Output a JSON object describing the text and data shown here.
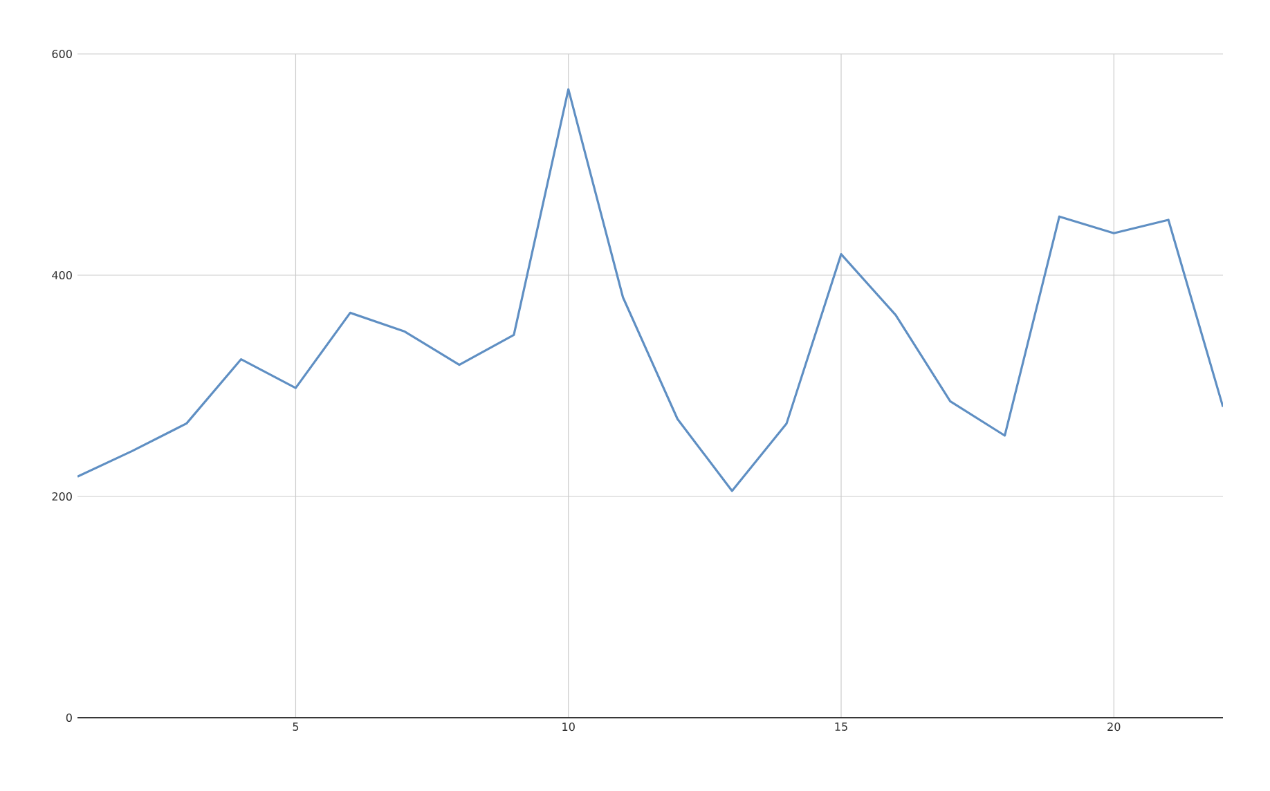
{
  "chart_data": {
    "type": "line",
    "x": [
      1,
      2,
      3,
      4,
      5,
      6,
      7,
      8,
      9,
      10,
      11,
      12,
      13,
      14,
      15,
      16,
      17,
      18,
      19,
      20,
      21,
      22
    ],
    "series": [
      {
        "color": "#5f8fc3",
        "values": [
          218,
          241,
          266,
          324,
          298,
          366,
          349,
          319,
          346,
          568,
          380,
          270,
          205,
          266,
          419,
          364,
          286,
          255,
          453,
          438,
          450,
          281
        ]
      }
    ],
    "xlim": [
      1,
      22
    ],
    "ylim": [
      0,
      600
    ],
    "xticks": [
      5,
      10,
      15,
      20
    ],
    "yticks": [
      0,
      200,
      400,
      600
    ],
    "grid": true
  }
}
